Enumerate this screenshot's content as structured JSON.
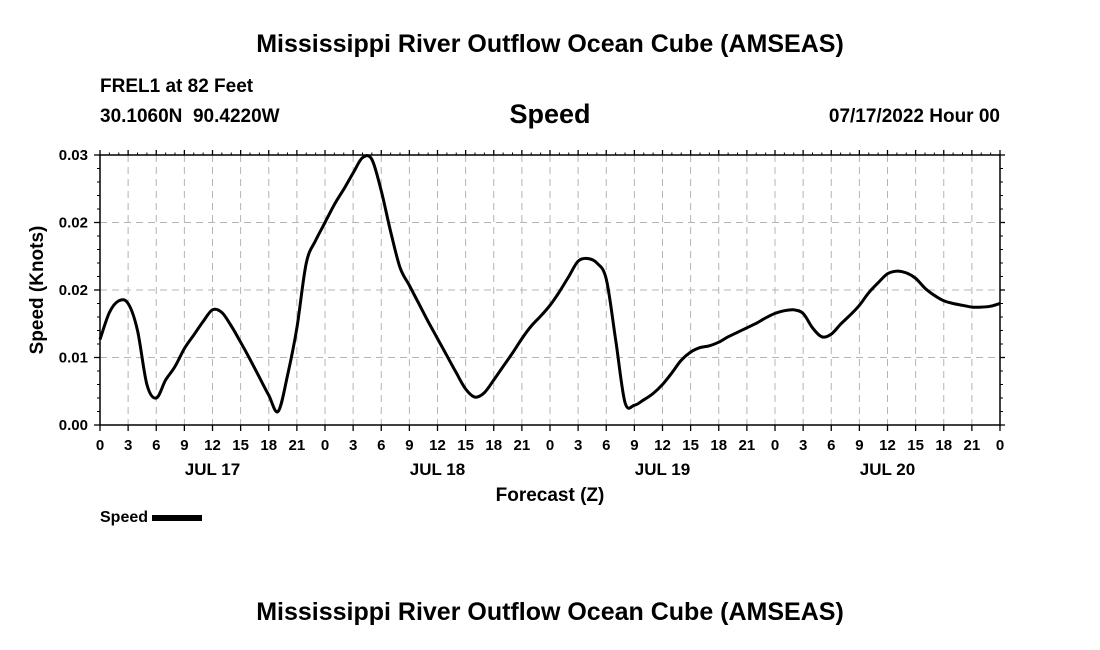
{
  "header": {
    "title": "Mississippi River Outflow Ocean Cube (AMSEAS)",
    "station": "FREL1 at 82 Feet",
    "coordinates": "30.1060N  90.4220W",
    "plot_title": "Speed",
    "timestamp": "07/17/2022 Hour 00"
  },
  "footer": {
    "title": "Mississippi River Outflow Ocean Cube (AMSEAS)"
  },
  "chart_data": {
    "type": "line",
    "title": "Speed",
    "xlabel": "Forecast (Z)",
    "ylabel": "Speed (Knots)",
    "xlim": [
      0,
      96
    ],
    "ylim": [
      0,
      0.03
    ],
    "yticks": [
      "0.00",
      "0.01",
      "0.02",
      "0.02",
      "0.03"
    ],
    "ytick_values": [
      0,
      0.0075,
      0.015,
      0.0225,
      0.03
    ],
    "xtick_hours": [
      0,
      3,
      6,
      9,
      12,
      15,
      18,
      21,
      24,
      27,
      30,
      33,
      36,
      39,
      42,
      45,
      48,
      51,
      54,
      57,
      60,
      63,
      66,
      69,
      72,
      75,
      78,
      81,
      84,
      87,
      90,
      93,
      96
    ],
    "xtick_labels": [
      "0",
      "3",
      "6",
      "9",
      "12",
      "15",
      "18",
      "21",
      "0",
      "3",
      "6",
      "9",
      "12",
      "15",
      "18",
      "21",
      "0",
      "3",
      "6",
      "9",
      "12",
      "15",
      "18",
      "21",
      "0",
      "3",
      "6",
      "9",
      "12",
      "15",
      "18",
      "21",
      "0"
    ],
    "date_labels": [
      {
        "label": "JUL 17",
        "hour": 12
      },
      {
        "label": "JUL 18",
        "hour": 36
      },
      {
        "label": "JUL 19",
        "hour": 60
      },
      {
        "label": "JUL 20",
        "hour": 84
      }
    ],
    "grid": true,
    "legend": "bottom-left",
    "series": [
      {
        "name": "Speed",
        "color": "#000000",
        "x": [
          0,
          1,
          2,
          3,
          4,
          5,
          6,
          7,
          8,
          9,
          10,
          11,
          12,
          13,
          14,
          15,
          16,
          17,
          18,
          19,
          20,
          21,
          22,
          23,
          24,
          25,
          26,
          27,
          28,
          29,
          30,
          31,
          32,
          33,
          34,
          35,
          36,
          37,
          38,
          39,
          40,
          41,
          42,
          43,
          44,
          45,
          46,
          47,
          48,
          49,
          50,
          51,
          52,
          53,
          54,
          55,
          56,
          57,
          58,
          59,
          60,
          61,
          62,
          63,
          64,
          65,
          66,
          67,
          68,
          69,
          70,
          71,
          72,
          73,
          74,
          75,
          76,
          77,
          78,
          79,
          80,
          81,
          82,
          83,
          84,
          85,
          86,
          87,
          88,
          89,
          90,
          91,
          92,
          93,
          94,
          95,
          96
        ],
        "y": [
          0.0095,
          0.0125,
          0.0138,
          0.0135,
          0.0105,
          0.0045,
          0.003,
          0.005,
          0.0065,
          0.0085,
          0.01,
          0.0115,
          0.0128,
          0.0125,
          0.011,
          0.0092,
          0.0073,
          0.0053,
          0.0033,
          0.0015,
          0.0055,
          0.0108,
          0.018,
          0.0205,
          0.0225,
          0.0245,
          0.0262,
          0.028,
          0.0297,
          0.0295,
          0.026,
          0.0215,
          0.0175,
          0.0155,
          0.0135,
          0.0115,
          0.0096,
          0.0077,
          0.0058,
          0.004,
          0.0031,
          0.0036,
          0.005,
          0.0065,
          0.008,
          0.0096,
          0.011,
          0.0121,
          0.0133,
          0.0148,
          0.0165,
          0.0182,
          0.0185,
          0.018,
          0.0162,
          0.0095,
          0.0025,
          0.0022,
          0.0028,
          0.0035,
          0.0045,
          0.0058,
          0.0072,
          0.0081,
          0.0086,
          0.0088,
          0.0092,
          0.0098,
          0.0103,
          0.0108,
          0.0113,
          0.0119,
          0.0124,
          0.0127,
          0.0128,
          0.0124,
          0.0108,
          0.0098,
          0.0101,
          0.0112,
          0.0122,
          0.0133,
          0.0147,
          0.0158,
          0.0168,
          0.0171,
          0.0169,
          0.0163,
          0.0152,
          0.0144,
          0.0138,
          0.0135,
          0.0133,
          0.0131,
          0.0131,
          0.0132,
          0.0135
        ]
      }
    ]
  },
  "legend_label": "Speed"
}
